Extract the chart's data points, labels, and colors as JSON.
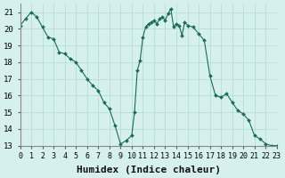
{
  "x": [
    0,
    0.5,
    1,
    1.5,
    2,
    2.5,
    3,
    3.5,
    4,
    4.5,
    5,
    5.5,
    6,
    6.5,
    7,
    7.5,
    8,
    8.5,
    9,
    9.5,
    10,
    10.25,
    10.5,
    10.75,
    11,
    11.25,
    11.5,
    11.75,
    12,
    12.25,
    12.5,
    12.75,
    13,
    13.25,
    13.5,
    13.75,
    14,
    14.25,
    14.5,
    14.75,
    15,
    15.5,
    16,
    16.5,
    17,
    17.5,
    18,
    18.5,
    19,
    19.5,
    20,
    20.5,
    21,
    21.5,
    22,
    22.5,
    23
  ],
  "y": [
    20.2,
    20.6,
    21.0,
    20.7,
    20.1,
    19.5,
    19.4,
    18.6,
    18.5,
    18.2,
    18.0,
    17.5,
    17.0,
    16.6,
    16.3,
    15.6,
    15.2,
    14.2,
    13.1,
    13.3,
    13.6,
    15.0,
    17.5,
    18.1,
    19.5,
    20.1,
    20.3,
    20.4,
    20.5,
    20.3,
    20.6,
    20.7,
    20.5,
    20.9,
    21.2,
    20.1,
    20.3,
    20.2,
    19.6,
    20.4,
    20.2,
    20.1,
    19.7,
    19.3,
    17.2,
    16.0,
    15.9,
    16.1,
    15.6,
    15.1,
    14.9,
    14.5,
    13.6,
    13.4,
    13.1,
    13.0,
    13.0
  ],
  "line_color": "#1a6b5a",
  "marker_color": "#1a6b5a",
  "bg_color": "#d6f0ee",
  "grid_color": "#b0d8d4",
  "xlabel": "Humidex (Indice chaleur)",
  "xlabel_fontsize": 8,
  "xlim": [
    0,
    23
  ],
  "ylim": [
    13,
    21.5
  ],
  "yticks": [
    13,
    14,
    15,
    16,
    17,
    18,
    19,
    20,
    21
  ],
  "xticks": [
    0,
    1,
    2,
    3,
    4,
    5,
    6,
    7,
    8,
    9,
    10,
    11,
    12,
    13,
    14,
    15,
    16,
    17,
    18,
    19,
    20,
    21,
    22,
    23
  ]
}
